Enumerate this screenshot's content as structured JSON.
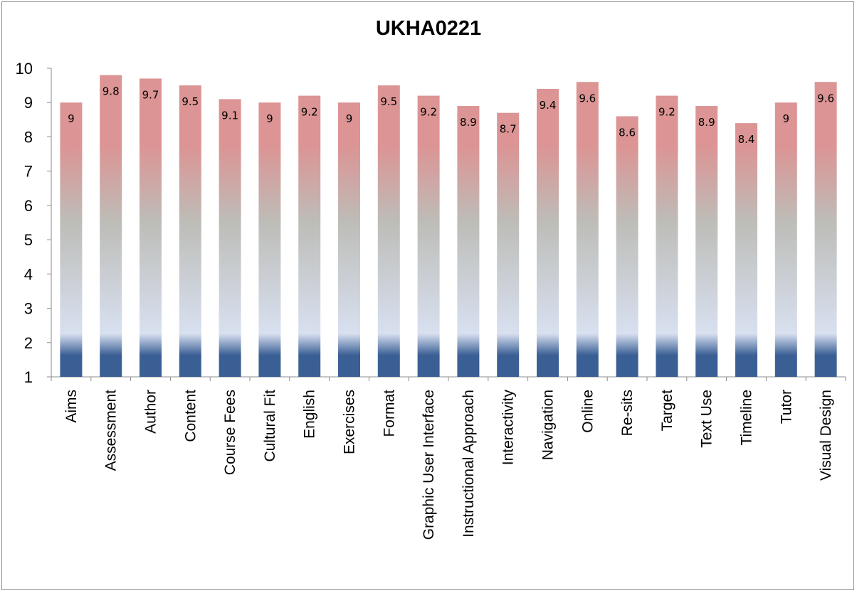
{
  "chart_data": {
    "type": "bar",
    "title": "UKHA0221",
    "xlabel": "",
    "ylabel": "",
    "ylim": [
      1,
      10
    ],
    "yticks": [
      1,
      2,
      3,
      4,
      5,
      6,
      7,
      8,
      9,
      10
    ],
    "grid": false,
    "legend": "none",
    "categories": [
      "Aims",
      "Assessment",
      "Author",
      "Content",
      "Course Fees",
      "Cultural Fit",
      "English",
      "Exercises",
      "Format",
      "Graphic User Interface",
      "Instructional Approach",
      "Interactivity",
      "Navigation",
      "Online",
      "Re-sits",
      "Target",
      "Text Use",
      "Timeline",
      "Tutor",
      "Visual Design"
    ],
    "values": [
      9,
      9.8,
      9.7,
      9.5,
      9.1,
      9,
      9.2,
      9,
      9.5,
      9.2,
      8.9,
      8.7,
      9.4,
      9.6,
      8.6,
      9.2,
      8.9,
      8.4,
      9,
      9.6
    ],
    "data_labels": [
      "9",
      "9.8",
      "9.7",
      "9.5",
      "9.1",
      "9",
      "9.2",
      "9",
      "9.5",
      "9.2",
      "8.9",
      "8.7",
      "9.4",
      "9.6",
      "8.6",
      "9.2",
      "8.9",
      "8.4",
      "9",
      "9.6"
    ],
    "bar_gradient": {
      "bottom": "#3a5f94",
      "light": "#d8e0f0",
      "middle": "#bdbdb8",
      "top": "#dc9494"
    },
    "axis_color": "#8c8c8c"
  }
}
